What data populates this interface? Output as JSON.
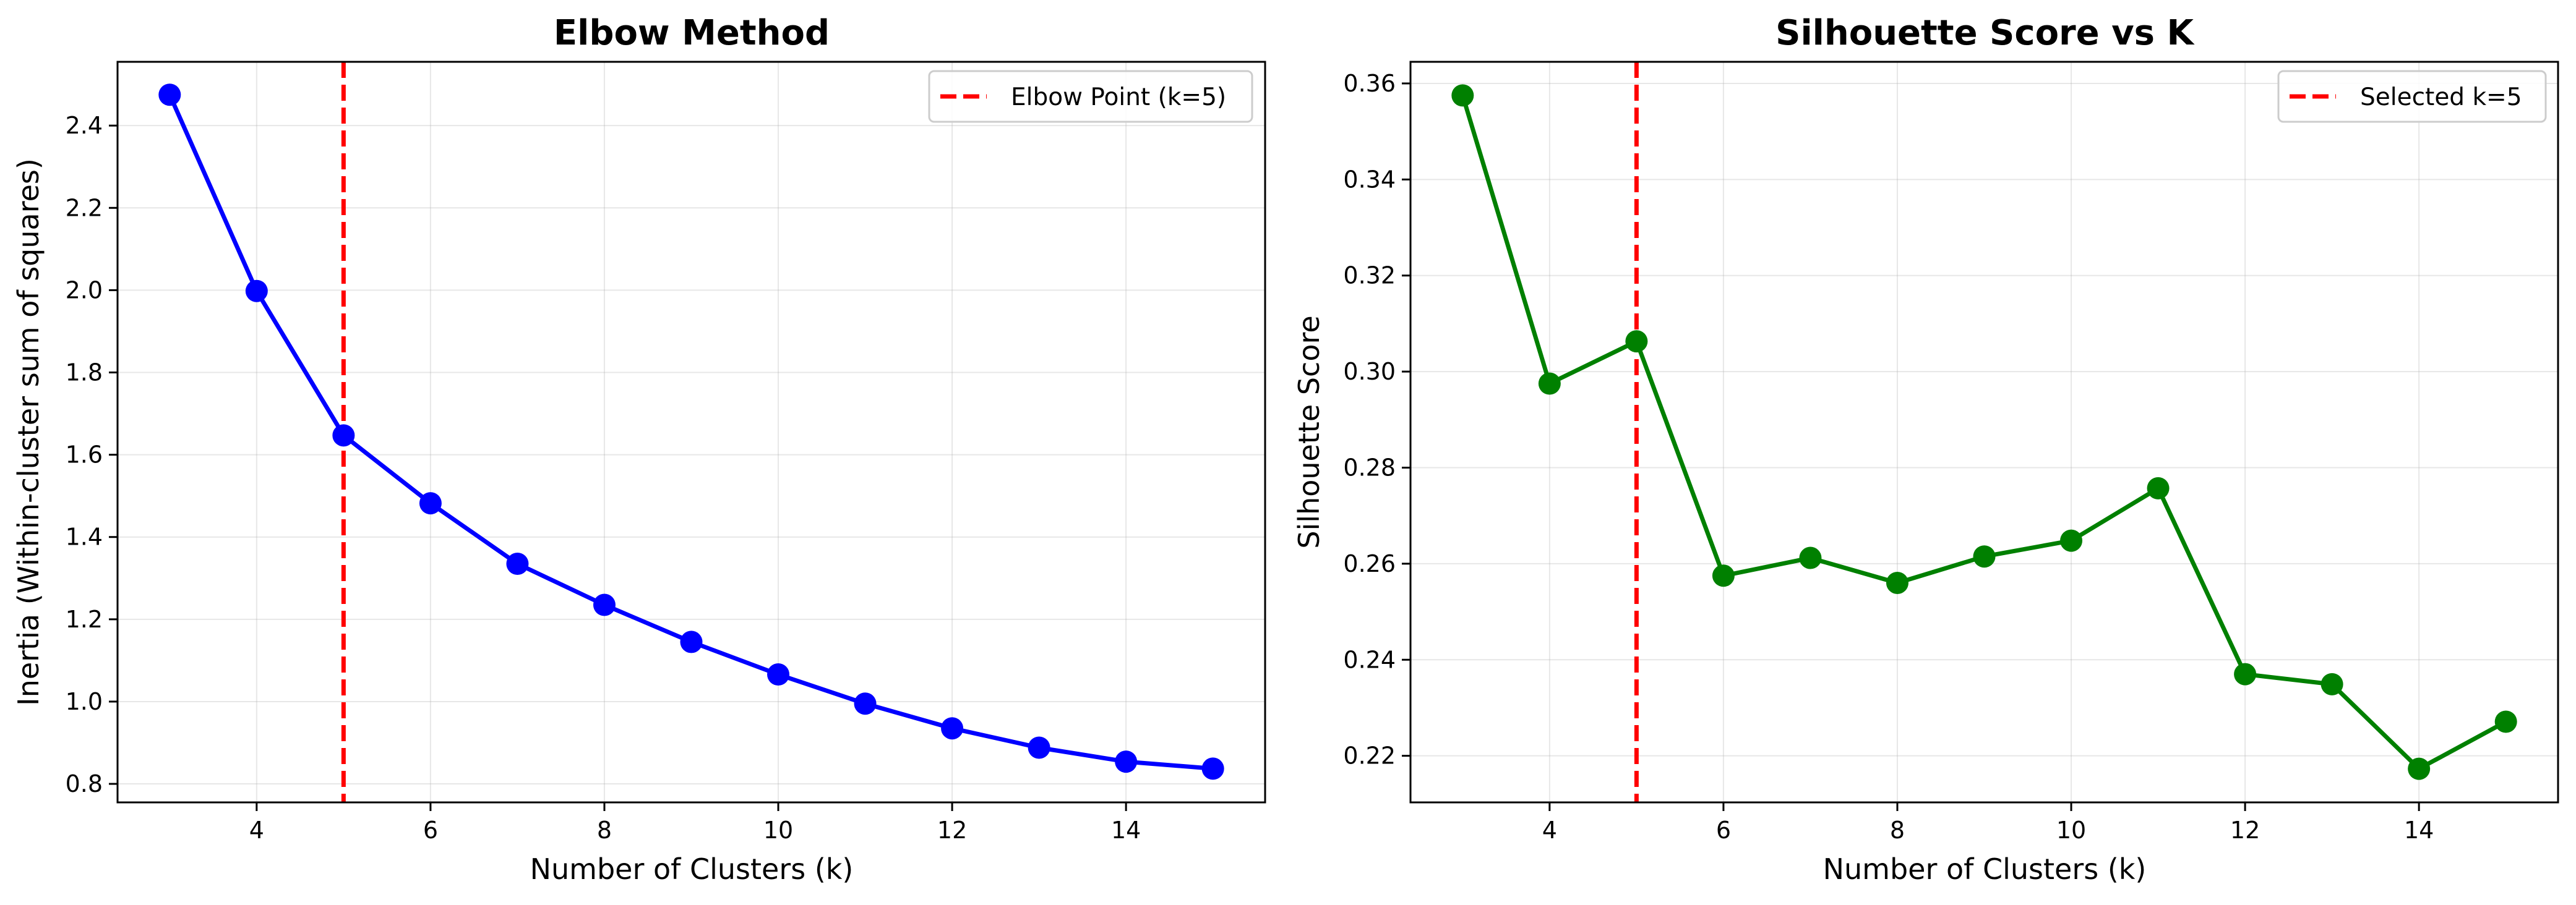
{
  "chart_data": [
    {
      "type": "line",
      "title": "Elbow Method",
      "xlabel": "Number of Clusters (k)",
      "ylabel": "Inertia (Within-cluster sum of squares)",
      "x": [
        3,
        4,
        5,
        6,
        7,
        8,
        9,
        10,
        11,
        12,
        13,
        14,
        15
      ],
      "series": [
        {
          "values": [
            2.475,
            1.998,
            1.647,
            1.482,
            1.335,
            1.235,
            1.145,
            1.066,
            0.995,
            0.935,
            0.888,
            0.854,
            0.837
          ],
          "color": "#0000ff",
          "marker": "circle"
        }
      ],
      "xticks": [
        4,
        6,
        8,
        10,
        12,
        14
      ],
      "xtick_labels": [
        "4",
        "6",
        "8",
        "10",
        "12",
        "14"
      ],
      "yticks": [
        0.8,
        1.0,
        1.2,
        1.4,
        1.6,
        1.8,
        2.0,
        2.2,
        2.4
      ],
      "ytick_labels": [
        "0.8",
        "1.0",
        "1.2",
        "1.4",
        "1.6",
        "1.8",
        "2.0",
        "2.2",
        "2.4"
      ],
      "xlim": [
        2.4,
        15.6
      ],
      "ylim": [
        0.755,
        2.555
      ],
      "vline": {
        "x": 5,
        "color": "#ff0000",
        "style": "dashed",
        "label": "Elbow Point (k=5)"
      },
      "grid": true,
      "legend_position": "top-right"
    },
    {
      "type": "line",
      "title": "Silhouette Score vs K",
      "xlabel": "Number of Clusters (k)",
      "ylabel": "Silhouette Score",
      "x": [
        3,
        4,
        5,
        6,
        7,
        8,
        9,
        10,
        11,
        12,
        13,
        14,
        15
      ],
      "series": [
        {
          "values": [
            0.3575,
            0.2975,
            0.3063,
            0.2575,
            0.2612,
            0.256,
            0.2615,
            0.2648,
            0.2757,
            0.237,
            0.2349,
            0.2173,
            0.2271
          ],
          "color": "#008000",
          "marker": "circle"
        }
      ],
      "xticks": [
        4,
        6,
        8,
        10,
        12,
        14
      ],
      "xtick_labels": [
        "4",
        "6",
        "8",
        "10",
        "12",
        "14"
      ],
      "yticks": [
        0.22,
        0.24,
        0.26,
        0.28,
        0.3,
        0.32,
        0.34,
        0.36
      ],
      "ytick_labels": [
        "0.22",
        "0.24",
        "0.26",
        "0.28",
        "0.30",
        "0.32",
        "0.34",
        "0.36"
      ],
      "xlim": [
        2.4,
        15.6
      ],
      "ylim": [
        0.2103,
        0.3645
      ],
      "vline": {
        "x": 5,
        "color": "#ff0000",
        "style": "dashed",
        "label": "Selected k=5"
      },
      "grid": true,
      "legend_position": "top-right"
    }
  ]
}
